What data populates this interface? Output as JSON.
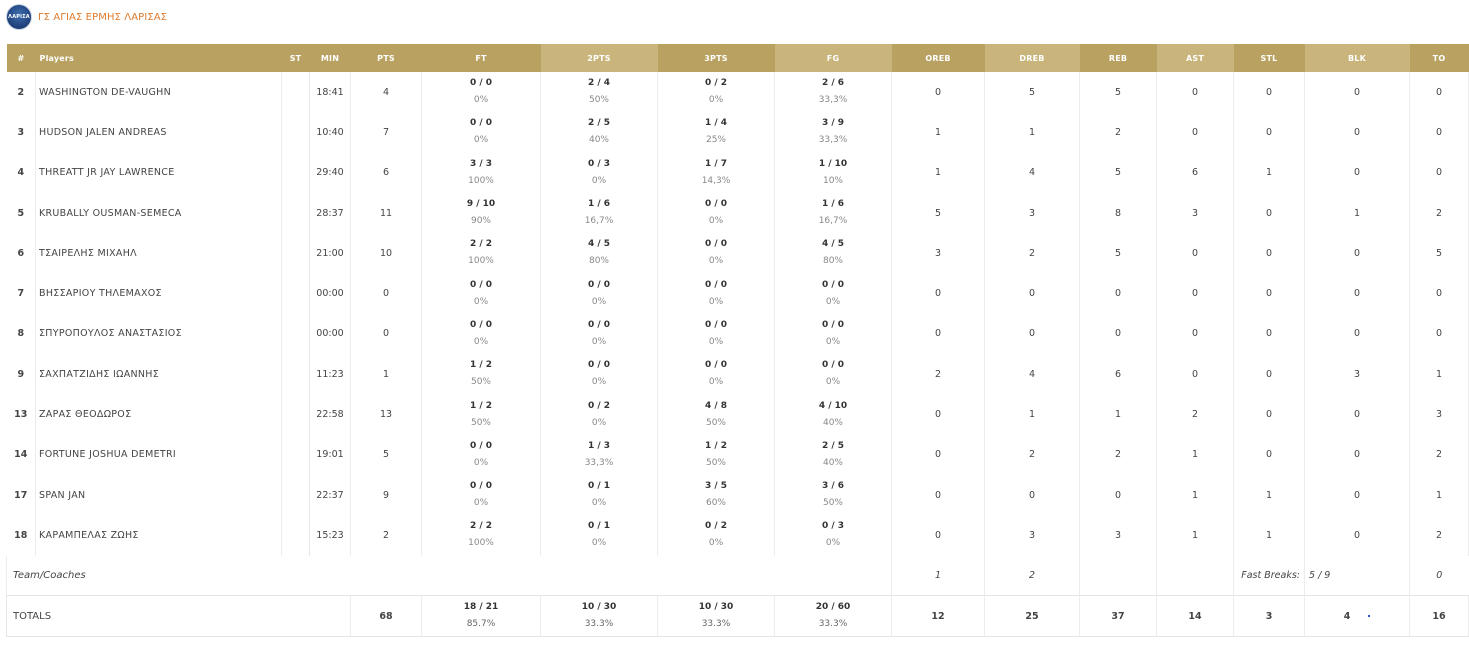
{
  "team": {
    "name": "ΓΣ ΑΓΙΑΣ ΕΡΜΗΣ ΛΑΡΙΣΑΣ",
    "logo_text": "ΛΑΡΙΣΑ",
    "logo_icon": "team-crest-icon"
  },
  "columns": {
    "no": "#",
    "players": "Players",
    "st": "ST",
    "min": "MIN",
    "pts": "PTS",
    "ft": "FT",
    "two": "2PTS",
    "three": "3PTS",
    "fg": "FG",
    "oreb": "OREB",
    "dreb": "DREB",
    "reb": "REB",
    "ast": "AST",
    "stl": "STL",
    "blk": "BLK",
    "to": "TO"
  },
  "players": [
    {
      "no": "2",
      "name": "WASHINGTON DE-VAUGHN",
      "st": "",
      "min": "18:41",
      "pts": "4",
      "ft": "0 / 0",
      "ft_pct": "0%",
      "two": "2 / 4",
      "two_pct": "50%",
      "three": "0 / 2",
      "three_pct": "0%",
      "fg": "2 / 6",
      "fg_pct": "33,3%",
      "oreb": "0",
      "dreb": "5",
      "reb": "5",
      "ast": "0",
      "stl": "0",
      "blk": "0",
      "to": "0"
    },
    {
      "no": "3",
      "name": "HUDSON JALEN ANDREAS",
      "st": "",
      "min": "10:40",
      "pts": "7",
      "ft": "0 / 0",
      "ft_pct": "0%",
      "two": "2 / 5",
      "two_pct": "40%",
      "three": "1 / 4",
      "three_pct": "25%",
      "fg": "3 / 9",
      "fg_pct": "33,3%",
      "oreb": "1",
      "dreb": "1",
      "reb": "2",
      "ast": "0",
      "stl": "0",
      "blk": "0",
      "to": "0"
    },
    {
      "no": "4",
      "name": "THREATT JR JAY LAWRENCE",
      "st": "",
      "min": "29:40",
      "pts": "6",
      "ft": "3 / 3",
      "ft_pct": "100%",
      "two": "0 / 3",
      "two_pct": "0%",
      "three": "1 / 7",
      "three_pct": "14,3%",
      "fg": "1 / 10",
      "fg_pct": "10%",
      "oreb": "1",
      "dreb": "4",
      "reb": "5",
      "ast": "6",
      "stl": "1",
      "blk": "0",
      "to": "0"
    },
    {
      "no": "5",
      "name": "KRUBALLY OUSMAN-SEMECA",
      "st": "",
      "min": "28:37",
      "pts": "11",
      "ft": "9 / 10",
      "ft_pct": "90%",
      "two": "1 / 6",
      "two_pct": "16,7%",
      "three": "0 / 0",
      "three_pct": "0%",
      "fg": "1 / 6",
      "fg_pct": "16,7%",
      "oreb": "5",
      "dreb": "3",
      "reb": "8",
      "ast": "3",
      "stl": "0",
      "blk": "1",
      "to": "2"
    },
    {
      "no": "6",
      "name": "ΤΣΑΙΡΕΛΗΣ ΜΙΧΑΗΛ",
      "st": "",
      "min": "21:00",
      "pts": "10",
      "ft": "2 / 2",
      "ft_pct": "100%",
      "two": "4 / 5",
      "two_pct": "80%",
      "three": "0 / 0",
      "three_pct": "0%",
      "fg": "4 / 5",
      "fg_pct": "80%",
      "oreb": "3",
      "dreb": "2",
      "reb": "5",
      "ast": "0",
      "stl": "0",
      "blk": "0",
      "to": "5"
    },
    {
      "no": "7",
      "name": "ΒΗΣΣΑΡΙΟΥ ΤΗΛΕΜΑΧΟΣ",
      "st": "",
      "min": "00:00",
      "pts": "0",
      "ft": "0 / 0",
      "ft_pct": "0%",
      "two": "0 / 0",
      "two_pct": "0%",
      "three": "0 / 0",
      "three_pct": "0%",
      "fg": "0 / 0",
      "fg_pct": "0%",
      "oreb": "0",
      "dreb": "0",
      "reb": "0",
      "ast": "0",
      "stl": "0",
      "blk": "0",
      "to": "0"
    },
    {
      "no": "8",
      "name": "ΣΠΥΡΟΠΟΥΛΟΣ ΑΝΑΣΤΑΣΙΟΣ",
      "st": "",
      "min": "00:00",
      "pts": "0",
      "ft": "0 / 0",
      "ft_pct": "0%",
      "two": "0 / 0",
      "two_pct": "0%",
      "three": "0 / 0",
      "three_pct": "0%",
      "fg": "0 / 0",
      "fg_pct": "0%",
      "oreb": "0",
      "dreb": "0",
      "reb": "0",
      "ast": "0",
      "stl": "0",
      "blk": "0",
      "to": "0"
    },
    {
      "no": "9",
      "name": "ΣΑΧΠΑΤΖΙΔΗΣ ΙΩΑΝΝΗΣ",
      "st": "",
      "min": "11:23",
      "pts": "1",
      "ft": "1 / 2",
      "ft_pct": "50%",
      "two": "0 / 0",
      "two_pct": "0%",
      "three": "0 / 0",
      "three_pct": "0%",
      "fg": "0 / 0",
      "fg_pct": "0%",
      "oreb": "2",
      "dreb": "4",
      "reb": "6",
      "ast": "0",
      "stl": "0",
      "blk": "3",
      "to": "1"
    },
    {
      "no": "13",
      "name": "ΖΑΡΑΣ ΘΕΟΔΩΡΟΣ",
      "st": "",
      "min": "22:58",
      "pts": "13",
      "ft": "1 / 2",
      "ft_pct": "50%",
      "two": "0 / 2",
      "two_pct": "0%",
      "three": "4 / 8",
      "three_pct": "50%",
      "fg": "4 / 10",
      "fg_pct": "40%",
      "oreb": "0",
      "dreb": "1",
      "reb": "1",
      "ast": "2",
      "stl": "0",
      "blk": "0",
      "to": "3"
    },
    {
      "no": "14",
      "name": "FORTUNE JOSHUA DEMETRI",
      "st": "",
      "min": "19:01",
      "pts": "5",
      "ft": "0 / 0",
      "ft_pct": "0%",
      "two": "1 / 3",
      "two_pct": "33,3%",
      "three": "1 / 2",
      "three_pct": "50%",
      "fg": "2 / 5",
      "fg_pct": "40%",
      "oreb": "0",
      "dreb": "2",
      "reb": "2",
      "ast": "1",
      "stl": "0",
      "blk": "0",
      "to": "2"
    },
    {
      "no": "17",
      "name": "SPAN JAN",
      "st": "",
      "min": "22:37",
      "pts": "9",
      "ft": "0 / 0",
      "ft_pct": "0%",
      "two": "0 / 1",
      "two_pct": "0%",
      "three": "3 / 5",
      "three_pct": "60%",
      "fg": "3 / 6",
      "fg_pct": "50%",
      "oreb": "0",
      "dreb": "0",
      "reb": "0",
      "ast": "1",
      "stl": "1",
      "blk": "0",
      "to": "1"
    },
    {
      "no": "18",
      "name": "ΚΑΡΑΜΠΕΛΑΣ ΖΩΗΣ",
      "st": "",
      "min": "15:23",
      "pts": "2",
      "ft": "2 / 2",
      "ft_pct": "100%",
      "two": "0 / 1",
      "two_pct": "0%",
      "three": "0 / 2",
      "three_pct": "0%",
      "fg": "0 / 3",
      "fg_pct": "0%",
      "oreb": "0",
      "dreb": "3",
      "reb": "3",
      "ast": "1",
      "stl": "1",
      "blk": "0",
      "to": "2"
    }
  ],
  "team_coaches": {
    "label": "Team/Coaches",
    "oreb": "1",
    "dreb": "2",
    "fast_breaks_label": "Fast Breaks:",
    "fast_breaks_value": "5 / 9",
    "to": "0"
  },
  "totals": {
    "label": "TOTALS",
    "pts": "68",
    "ft": "18 / 21",
    "ft_pct": "85.7%",
    "two": "10 / 30",
    "two_pct": "33.3%",
    "three": "10 / 30",
    "three_pct": "33.3%",
    "fg": "20 / 60",
    "fg_pct": "33.3%",
    "oreb": "12",
    "dreb": "25",
    "reb": "37",
    "ast": "14",
    "stl": "3",
    "blk": "4",
    "to": "16"
  },
  "colors": {
    "header_dark": "#b9a261",
    "header_light": "#c9b57b",
    "team_name": "#e07b2e"
  }
}
